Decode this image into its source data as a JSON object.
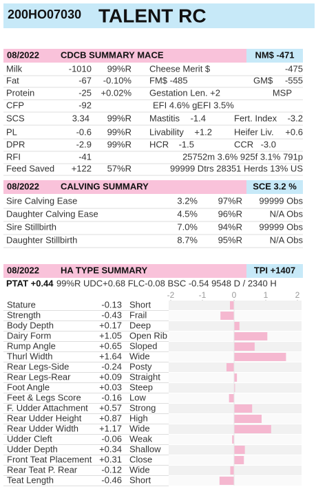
{
  "header": {
    "id": "200HO07030",
    "name": "TALENT RC"
  },
  "cdcb": {
    "date": "08/2022",
    "title": "CDCB SUMMARY MACE",
    "index": "NM$ -471",
    "rows": [
      [
        "Milk",
        "-1010",
        "99%R",
        "Cheese Merit $",
        "-475"
      ],
      [
        "Fat",
        "-67",
        "-0.10%",
        "FM$ -485",
        "GM$",
        "-555"
      ],
      [
        "Protein",
        "-25",
        "+0.02%",
        "Gestation Len. +2",
        "MSP"
      ],
      [
        "CFP",
        "-92",
        "EFI  4.6%  gEFI  3.5%"
      ],
      [
        "SCS",
        "3.34",
        "99%R",
        "Mastitis",
        "-1.4",
        "Fert. Index",
        "-3.2"
      ],
      [
        "PL",
        "-0.6",
        "99%R",
        "Livability",
        "+1.2",
        "Heifer Liv.",
        "+0.6"
      ],
      [
        "DPR",
        "-2.9",
        "99%R",
        "HCR",
        "-1.5",
        "CCR",
        "-3.0"
      ],
      [
        "RFI",
        "-41",
        "25752m  3.6%  925f  3.1%  791p"
      ],
      [
        "Feed Saved",
        "+122",
        "57%R",
        "99999 Dtrs  28351 Herds  13% US"
      ]
    ]
  },
  "calving": {
    "date": "08/2022",
    "title": "CALVING SUMMARY",
    "index": "SCE 3.2 %",
    "rows": [
      [
        "Sire Calving Ease",
        "3.2%",
        "97%R",
        "99999 Obs"
      ],
      [
        "Daughter Calving Ease",
        "4.5%",
        "96%R",
        "N/A Obs"
      ],
      [
        "Sire Stillbirth",
        "7.0%",
        "94%R",
        "99999 Obs"
      ],
      [
        "Daughter Stillbirth",
        "8.7%",
        "95%R",
        "N/A Obs"
      ]
    ]
  },
  "type": {
    "date": "08/2022",
    "title": "HA TYPE SUMMARY",
    "index": "TPI +1407",
    "ptat": "PTAT +0.44",
    "ptat_detail": "99%R  UDC+0.68  FLC-0.08  BSC -0.54  9548 D /  2340 H",
    "xlim": [
      -2,
      2
    ],
    "xticks": [
      -2,
      -1,
      0,
      1,
      2
    ],
    "bar_color": "#f5b8d0",
    "traits": [
      {
        "name": "Stature",
        "score": -0.13,
        "desc": "Short"
      },
      {
        "name": "Strength",
        "score": -0.43,
        "desc": "Frail"
      },
      {
        "name": "Body Depth",
        "score": {
          "value": 0.17,
          "label": "+0.17"
        },
        "desc": "Deep"
      },
      {
        "name": "Dairy Form",
        "score": {
          "value": 1.05,
          "label": "+1.05"
        },
        "desc": "Open Rib"
      },
      {
        "name": "Rump Angle",
        "score": {
          "value": 0.65,
          "label": "+0.65"
        },
        "desc": "Sloped"
      },
      {
        "name": "Thurl Width",
        "score": {
          "value": 1.64,
          "label": "+1.64"
        },
        "desc": "Wide"
      },
      {
        "name": "Rear Legs-Side",
        "score": -0.24,
        "desc": "Posty"
      },
      {
        "name": "Rear Legs-Rear",
        "score": {
          "value": 0.09,
          "label": "+0.09"
        },
        "desc": "Straight"
      },
      {
        "name": "Foot Angle",
        "score": {
          "value": 0.03,
          "label": "+0.03"
        },
        "desc": "Steep"
      },
      {
        "name": "Feet & Legs Score",
        "score": -0.16,
        "desc": "Low"
      },
      {
        "name": "F. Udder Attachment",
        "score": {
          "value": 0.57,
          "label": "+0.57"
        },
        "desc": "Strong"
      },
      {
        "name": "Rear Udder Height",
        "score": {
          "value": 0.87,
          "label": "+0.87"
        },
        "desc": "High"
      },
      {
        "name": "Rear Udder Width",
        "score": {
          "value": 1.17,
          "label": "+1.17"
        },
        "desc": "Wide"
      },
      {
        "name": "Udder Cleft",
        "score": -0.06,
        "desc": "Weak"
      },
      {
        "name": "Udder Depth",
        "score": {
          "value": 0.34,
          "label": "+0.34"
        },
        "desc": "Shallow"
      },
      {
        "name": "Front Teat Placement",
        "score": {
          "value": 0.31,
          "label": "+0.31"
        },
        "desc": "Close"
      },
      {
        "name": "Rear Teat P. Rear",
        "score": -0.12,
        "desc": "Wide"
      },
      {
        "name": "Teat Length",
        "score": -0.46,
        "desc": "Short"
      }
    ]
  }
}
